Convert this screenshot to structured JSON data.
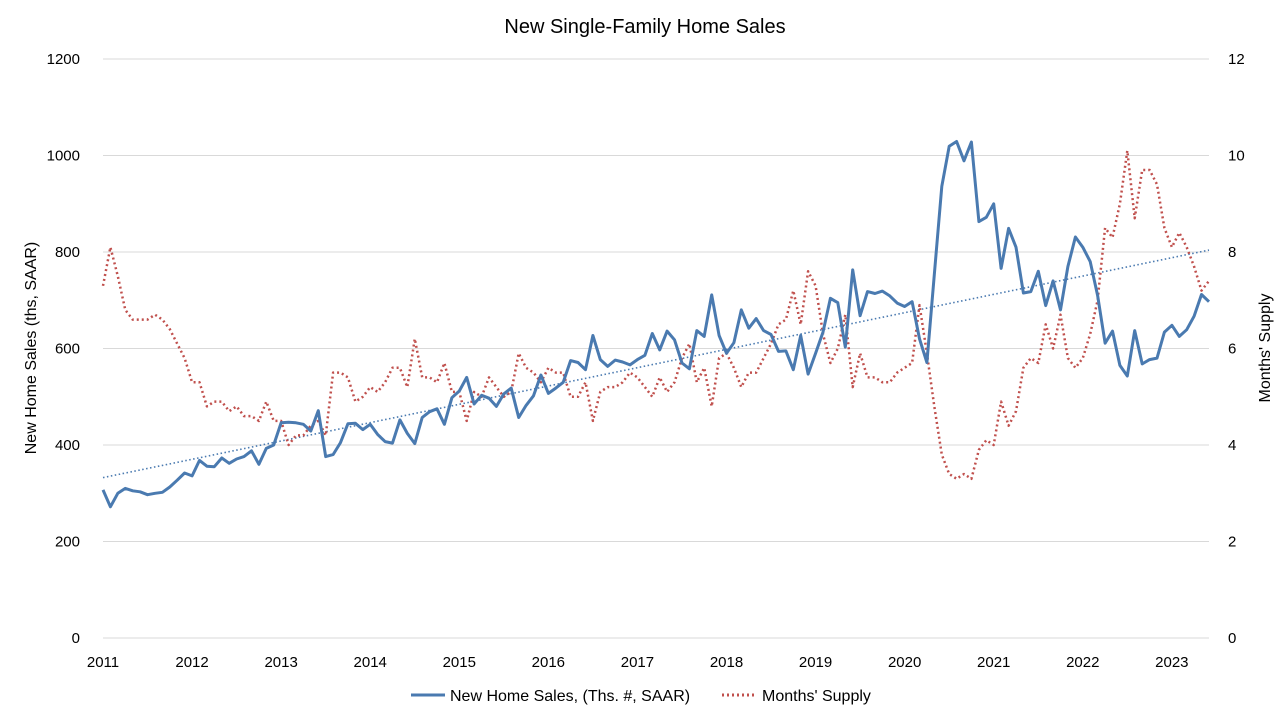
{
  "chart_data": {
    "type": "line",
    "title": "New Single-Family Home Sales",
    "ylabel_left": "New Home Sales (ths, SAAR)",
    "ylabel_right": "Months' Supply",
    "y_left_range": [
      0,
      1200
    ],
    "y_left_ticks": [
      "0",
      "200",
      "400",
      "600",
      "800",
      "1000",
      "1200"
    ],
    "y_right_range": [
      0,
      12
    ],
    "y_right_ticks": [
      "0",
      "2",
      "4",
      "6",
      "8",
      "10",
      "12"
    ],
    "x_range": [
      2011.0,
      2023.417
    ],
    "x_ticks": [
      "2011",
      "2012",
      "2013",
      "2014",
      "2015",
      "2016",
      "2017",
      "2018",
      "2019",
      "2020",
      "2021",
      "2022",
      "2023"
    ],
    "grid": "horizontal",
    "legend_position": "bottom",
    "colors": {
      "sales": "#4a7ab0",
      "supply": "#c0504d",
      "trend": "#4a7ab0",
      "grid": "#d9d9d9"
    },
    "series": [
      {
        "name": "New Home Sales, (Ths. #, SAAR)",
        "axis": "left",
        "style": "solid",
        "x_start": "2011-01",
        "frequency": "monthly",
        "values": [
          307,
          272,
          300,
          310,
          305,
          303,
          297,
          300,
          302,
          313,
          327,
          342,
          336,
          368,
          356,
          355,
          373,
          362,
          371,
          376,
          388,
          360,
          393,
          400,
          446,
          447,
          446,
          443,
          429,
          471,
          376,
          380,
          405,
          444,
          445,
          432,
          443,
          422,
          407,
          404,
          452,
          424,
          403,
          457,
          469,
          475,
          443,
          498,
          512,
          540,
          485,
          503,
          497,
          480,
          506,
          518,
          457,
          482,
          502,
          545,
          507,
          518,
          530,
          575,
          571,
          556,
          627,
          577,
          563,
          576,
          572,
          566,
          577,
          586,
          631,
          597,
          636,
          618,
          570,
          558,
          637,
          625,
          711,
          627,
          590,
          612,
          680,
          642,
          662,
          637,
          629,
          594,
          595,
          556,
          627,
          547,
          590,
          634,
          704,
          695,
          603,
          763,
          668,
          718,
          714,
          719,
          709,
          694,
          687,
          697,
          620,
          571,
          753,
          936,
          1019,
          1029,
          989,
          1028,
          863,
          872,
          900,
          766,
          849,
          810,
          715,
          718,
          760,
          689,
          740,
          680,
          770,
          831,
          810,
          780,
          710,
          611,
          636,
          565,
          543,
          637,
          568,
          577,
          580,
          634,
          648,
          625,
          639,
          667,
          712,
          697
        ]
      },
      {
        "name": "Months' Supply",
        "axis": "right",
        "style": "dotted",
        "x_start": "2011-01",
        "frequency": "monthly",
        "values": [
          7.3,
          8.1,
          7.5,
          6.8,
          6.6,
          6.6,
          6.6,
          6.7,
          6.6,
          6.4,
          6.1,
          5.8,
          5.3,
          5.3,
          4.8,
          4.9,
          4.9,
          4.7,
          4.8,
          4.6,
          4.6,
          4.5,
          4.9,
          4.5,
          4.5,
          4.0,
          4.2,
          4.2,
          4.4,
          4.5,
          4.2,
          5.5,
          5.5,
          5.4,
          4.9,
          5.0,
          5.2,
          5.1,
          5.3,
          5.6,
          5.6,
          5.2,
          6.2,
          5.4,
          5.4,
          5.3,
          5.7,
          5.1,
          5.1,
          4.5,
          5.1,
          5.0,
          5.4,
          5.2,
          5.0,
          5.1,
          5.9,
          5.6,
          5.5,
          5.3,
          5.6,
          5.5,
          5.5,
          5.0,
          5.0,
          5.3,
          4.5,
          5.1,
          5.2,
          5.2,
          5.3,
          5.5,
          5.4,
          5.2,
          5.0,
          5.4,
          5.1,
          5.3,
          5.8,
          6.1,
          5.3,
          5.6,
          4.8,
          5.8,
          5.9,
          5.6,
          5.2,
          5.5,
          5.5,
          5.8,
          6.1,
          6.5,
          6.6,
          7.2,
          6.5,
          7.6,
          7.3,
          6.3,
          5.7,
          6.0,
          6.7,
          5.2,
          5.9,
          5.4,
          5.4,
          5.3,
          5.3,
          5.5,
          5.6,
          5.7,
          6.9,
          5.9,
          4.8,
          3.8,
          3.4,
          3.3,
          3.4,
          3.3,
          3.9,
          4.1,
          4.0,
          4.9,
          4.4,
          4.7,
          5.6,
          5.8,
          5.7,
          6.5,
          6.0,
          6.7,
          5.8,
          5.6,
          5.8,
          6.3,
          7.0,
          8.5,
          8.3,
          9.0,
          10.1,
          8.7,
          9.7,
          9.7,
          9.4,
          8.5,
          8.1,
          8.4,
          8.1,
          7.7,
          7.2,
          7.4
        ]
      }
    ],
    "trendline": {
      "series": "New Home Sales, (Ths. #, SAAR)",
      "type": "linear",
      "style": "dotted"
    },
    "legend": [
      {
        "label": "New Home Sales, (Ths. #, SAAR)",
        "style": "solid"
      },
      {
        "label": "Months' Supply",
        "style": "dotted"
      }
    ]
  }
}
